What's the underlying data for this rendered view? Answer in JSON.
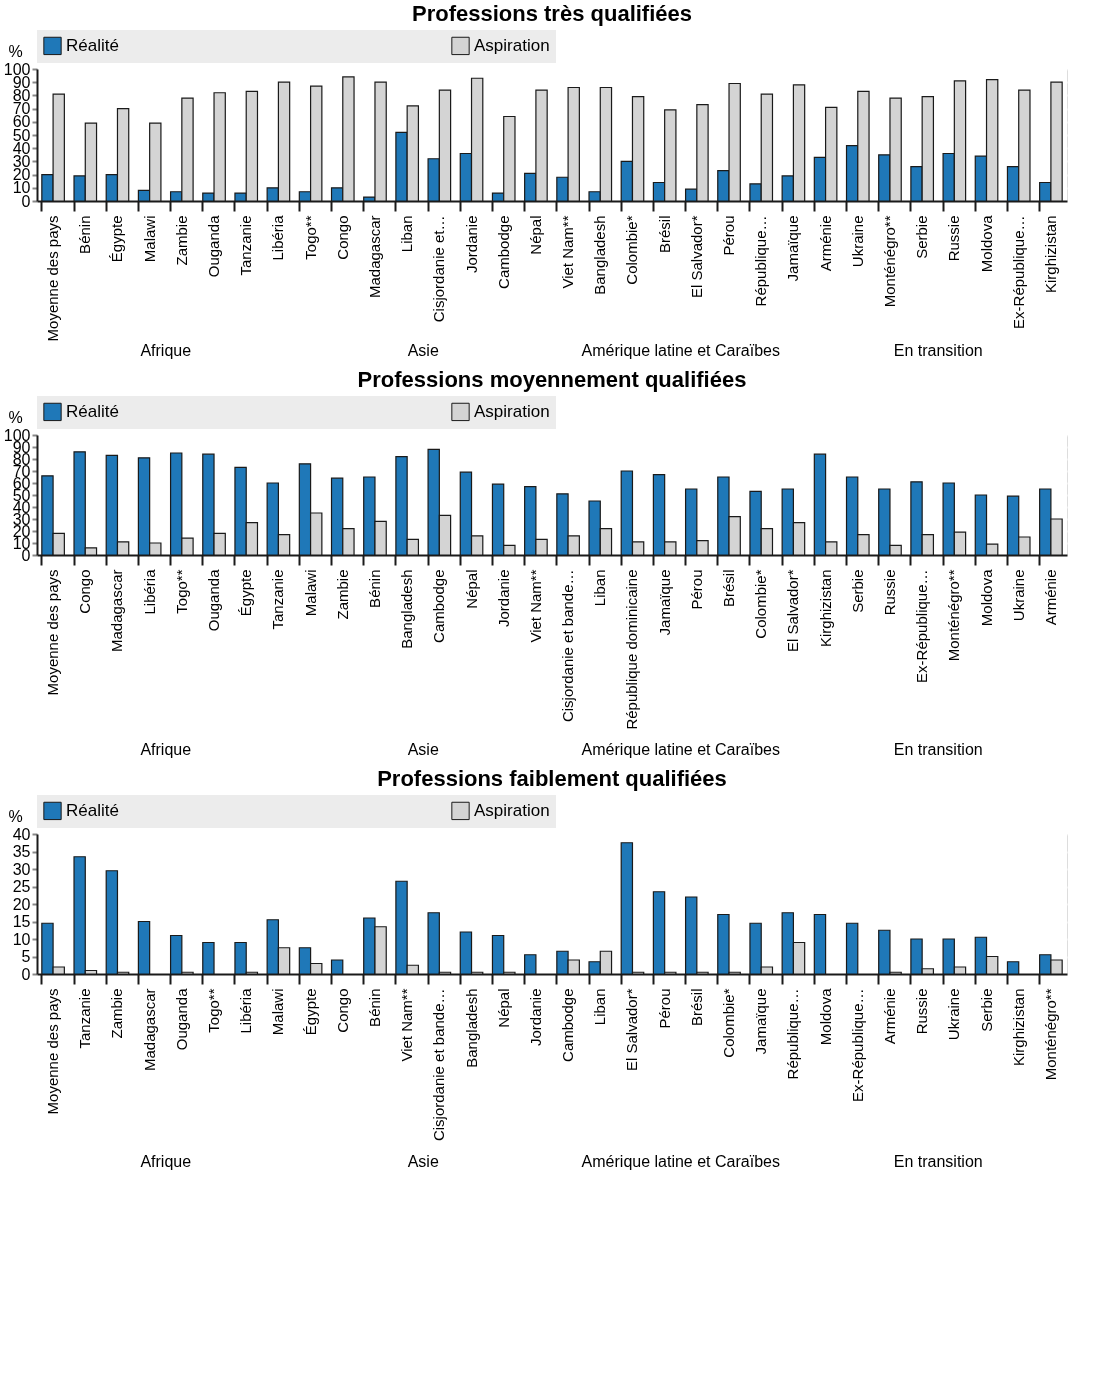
{
  "chart_data": [
    {
      "type": "bar",
      "title": "Professions très qualifiées",
      "ylabel": "%",
      "ylim": [
        0,
        100
      ],
      "yticks": [
        0,
        10,
        20,
        30,
        40,
        50,
        60,
        70,
        80,
        90,
        100
      ],
      "grid": true,
      "legend": "top",
      "categories": [
        "Moyenne des pays",
        "Bénin",
        "Égypte",
        "Malawi",
        "Zambie",
        "Ouganda",
        "Tanzanie",
        "Libéria",
        "Togo**",
        "Congo",
        "Madagascar",
        "Liban",
        "Cisjordanie et…",
        "Jordanie",
        "Cambodge",
        "Népal",
        "Viet Nam**",
        "Bangladesh",
        "Colombie*",
        "Brésil",
        "El Salvador*",
        "Pérou",
        "République…",
        "Jamaïque",
        "Arménie",
        "Ukraine",
        "Monténégro**",
        "Serbie",
        "Russie",
        "Moldova",
        "Ex-République…",
        "Kirghizistan"
      ],
      "series": [
        {
          "name": "Réalité",
          "color": "#1f78b8",
          "values": [
            20,
            19,
            20,
            8,
            7,
            6,
            6,
            10,
            7,
            10,
            3,
            52,
            32,
            36,
            6,
            21,
            18,
            7,
            30,
            14,
            9,
            23,
            13,
            19,
            33,
            42,
            35,
            26,
            36,
            34,
            26,
            14
          ]
        },
        {
          "name": "Aspiration",
          "color": "#d4d4d4",
          "values": [
            81,
            59,
            70,
            59,
            78,
            82,
            83,
            90,
            87,
            94,
            90,
            72,
            84,
            93,
            64,
            84,
            86,
            86,
            79,
            69,
            73,
            89,
            81,
            88,
            71,
            83,
            78,
            79,
            91,
            92,
            84,
            90
          ]
        }
      ],
      "annotations": [
        "Afrique",
        "Asie",
        "Amérique latine et Caraïbes",
        "En transition"
      ]
    },
    {
      "type": "bar",
      "title": "Professions moyennement qualifiées",
      "ylabel": "%",
      "ylim": [
        0,
        100
      ],
      "yticks": [
        0,
        10,
        20,
        30,
        40,
        50,
        60,
        70,
        80,
        90,
        100
      ],
      "grid": true,
      "legend": "top",
      "categories": [
        "Moyenne des pays",
        "Congo",
        "Madagascar",
        "Libéria",
        "Togo**",
        "Ouganda",
        "Égypte",
        "Tanzanie",
        "Malawi",
        "Zambie",
        "Bénin",
        "Bangladesh",
        "Cambodge",
        "Népal",
        "Jordanie",
        "Viet Nam**",
        "Cisjordanie et bande…",
        "Liban",
        "République dominicaine",
        "Jamaïque",
        "Pérou",
        "Brésil",
        "Colombie*",
        "El Salvador*",
        "Kirghizistan",
        "Serbie",
        "Russie",
        "Ex-République…",
        "Monténégro**",
        "Moldova",
        "Ukraine",
        "Arménie"
      ],
      "series": [
        {
          "name": "Réalité",
          "color": "#1f78b8",
          "values": [
            66,
            86,
            83,
            81,
            85,
            84,
            73,
            60,
            76,
            64,
            65,
            82,
            88,
            69,
            59,
            57,
            51,
            45,
            70,
            67,
            55,
            65,
            53,
            55,
            84,
            65,
            55,
            61,
            60,
            50,
            49,
            55
          ]
        },
        {
          "name": "Aspiration",
          "color": "#d4d4d4",
          "values": [
            18,
            6,
            11,
            10,
            14,
            18,
            27,
            17,
            35,
            22,
            28,
            13,
            33,
            16,
            8,
            13,
            16,
            22,
            11,
            11,
            12,
            32,
            22,
            27,
            11,
            17,
            8,
            17,
            19,
            9,
            15,
            30
          ]
        }
      ],
      "annotations": [
        "Afrique",
        "Asie",
        "Amérique latine et Caraïbes",
        "En transition"
      ]
    },
    {
      "type": "bar",
      "title": "Professions faiblement qualifiées",
      "ylabel": "%",
      "ylim": [
        0,
        40
      ],
      "yticks": [
        0,
        5,
        10,
        15,
        20,
        25,
        30,
        35,
        40
      ],
      "grid": true,
      "legend": "top",
      "categories": [
        "Moyenne des pays",
        "Tanzanie",
        "Zambie",
        "Madagascar",
        "Ouganda",
        "Togo**",
        "Libéria",
        "Malawi",
        "Égypte",
        "Congo",
        "Bénin",
        "Viet Nam**",
        "Cisjordanie et bande…",
        "Bangladesh",
        "Népal",
        "Jordanie",
        "Cambodge",
        "Liban",
        "El Salvador*",
        "Pérou",
        "Brésil",
        "Colombie*",
        "Jamaïque",
        "République…",
        "Moldova",
        "Ex-République…",
        "Arménie",
        "Russie",
        "Ukraine",
        "Serbie",
        "Kirghizistan",
        "Monténégro**"
      ],
      "series": [
        {
          "name": "Réalité",
          "color": "#1f78b8",
          "values": [
            14.5,
            33.5,
            29.5,
            15,
            11,
            9,
            9,
            15.5,
            7.5,
            4,
            16,
            26.5,
            17.5,
            12,
            11,
            5.5,
            6.5,
            3.5,
            37.5,
            23.5,
            22,
            17,
            14.5,
            17.5,
            17,
            14.5,
            12.5,
            10,
            10,
            10.5,
            3.5,
            5.5
          ]
        },
        {
          "name": "Aspiration",
          "color": "#d4d4d4",
          "values": [
            2,
            1,
            0.5,
            0,
            0.5,
            0,
            0.5,
            7.5,
            3,
            0,
            13.5,
            2.5,
            0.5,
            0.5,
            0.5,
            0,
            4,
            6.5,
            0.5,
            0.5,
            0.5,
            0.5,
            2,
            9,
            0,
            0,
            0.5,
            1.5,
            2,
            5,
            0,
            4
          ]
        }
      ],
      "annotations": [
        "Afrique",
        "Asie",
        "Amérique latine et Caraïbes",
        "En transition"
      ]
    }
  ]
}
